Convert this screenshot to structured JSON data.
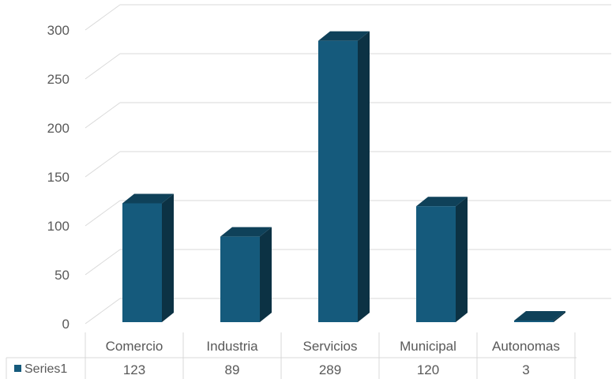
{
  "chart_data": {
    "type": "bar",
    "categories": [
      "Comercio",
      "Industria",
      "Servicios",
      "Municipal",
      "Autonomas"
    ],
    "series": [
      {
        "name": "Series1",
        "values": [
          123,
          89,
          289,
          120,
          3
        ]
      }
    ],
    "yticks": [
      0,
      50,
      100,
      150,
      200,
      250,
      300
    ],
    "ylim": [
      0,
      300
    ],
    "title": "",
    "xlabel": "",
    "ylabel": "",
    "grid": true,
    "legend": "data-table-left",
    "bar_color": "#155a7c"
  }
}
